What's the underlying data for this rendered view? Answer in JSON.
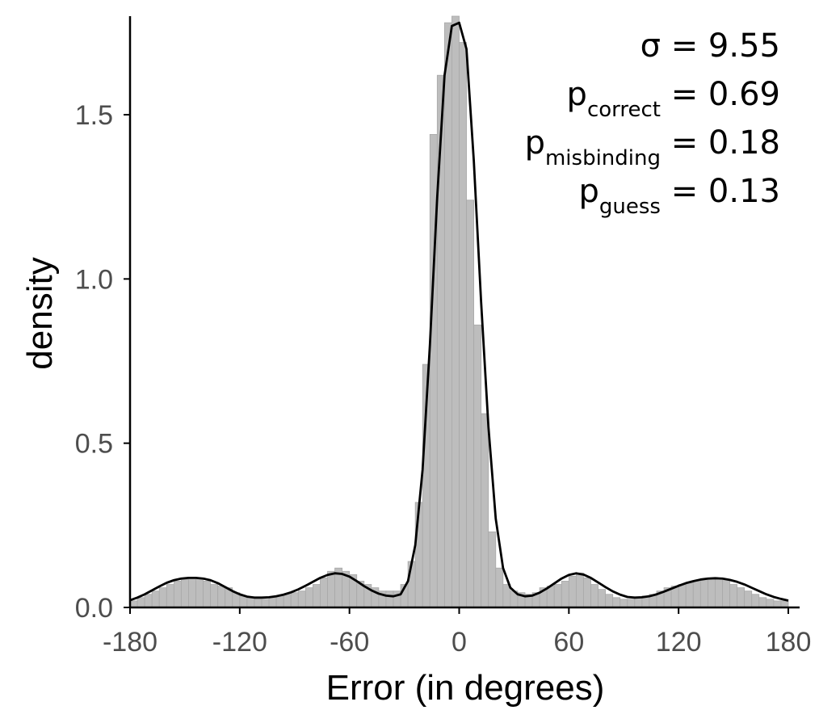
{
  "chart_data": {
    "type": "bar",
    "xlabel": "Error (in degrees)",
    "ylabel": "density",
    "xlim": [
      -180,
      180
    ],
    "ylim": [
      0,
      1.8
    ],
    "x_ticks": [
      "-180",
      "-120",
      "-60",
      "0",
      "60",
      "120",
      "180"
    ],
    "y_ticks": [
      "0.0",
      "0.5",
      "1.0",
      "1.5"
    ],
    "grid": false,
    "legend": "none",
    "colors": {
      "bars": "#bdbdbd",
      "bar_edge": "#a8a8a8",
      "curve": "#000000",
      "axis": "#000000",
      "tick_text": "#4d4d4d"
    },
    "bins": {
      "width": 4,
      "x_centers": [
        -178,
        -174,
        -170,
        -166,
        -162,
        -158,
        -154,
        -150,
        -146,
        -142,
        -138,
        -134,
        -130,
        -126,
        -122,
        -118,
        -114,
        -110,
        -106,
        -102,
        -98,
        -94,
        -90,
        -86,
        -82,
        -78,
        -74,
        -70,
        -66,
        -62,
        -58,
        -54,
        -50,
        -46,
        -42,
        -38,
        -34,
        -30,
        -26,
        -22,
        -18,
        -14,
        -10,
        -6,
        -2,
        2,
        6,
        10,
        14,
        18,
        22,
        26,
        30,
        34,
        38,
        42,
        46,
        50,
        54,
        58,
        62,
        66,
        70,
        74,
        78,
        82,
        86,
        90,
        94,
        98,
        102,
        106,
        110,
        114,
        118,
        122,
        126,
        130,
        134,
        138,
        142,
        146,
        150,
        154,
        158,
        162,
        166,
        170,
        174,
        178
      ],
      "values": [
        0.02,
        0.03,
        0.04,
        0.05,
        0.06,
        0.07,
        0.08,
        0.085,
        0.09,
        0.09,
        0.08,
        0.07,
        0.065,
        0.06,
        0.045,
        0.035,
        0.03,
        0.025,
        0.025,
        0.03,
        0.035,
        0.04,
        0.045,
        0.05,
        0.06,
        0.07,
        0.09,
        0.11,
        0.12,
        0.11,
        0.1,
        0.08,
        0.07,
        0.06,
        0.05,
        0.05,
        0.05,
        0.07,
        0.14,
        0.32,
        0.74,
        1.44,
        1.62,
        1.78,
        1.8,
        1.72,
        1.24,
        0.86,
        0.59,
        0.23,
        0.12,
        0.07,
        0.05,
        0.045,
        0.04,
        0.045,
        0.06,
        0.065,
        0.07,
        0.08,
        0.095,
        0.105,
        0.09,
        0.07,
        0.055,
        0.04,
        0.03,
        0.025,
        0.025,
        0.03,
        0.035,
        0.04,
        0.05,
        0.06,
        0.065,
        0.07,
        0.075,
        0.08,
        0.085,
        0.09,
        0.09,
        0.085,
        0.07,
        0.06,
        0.05,
        0.04,
        0.03,
        0.025,
        0.02,
        0.02
      ]
    },
    "model_curve": {
      "x": [
        -180,
        -176,
        -172,
        -168,
        -164,
        -160,
        -156,
        -152,
        -148,
        -144,
        -140,
        -136,
        -132,
        -128,
        -124,
        -120,
        -116,
        -112,
        -108,
        -104,
        -100,
        -96,
        -92,
        -88,
        -84,
        -80,
        -76,
        -72,
        -68,
        -64,
        -60,
        -56,
        -52,
        -48,
        -44,
        -40,
        -36,
        -32,
        -28,
        -24,
        -20,
        -16,
        -12,
        -8,
        -4,
        0,
        4,
        8,
        12,
        16,
        20,
        24,
        28,
        32,
        36,
        40,
        44,
        48,
        52,
        56,
        60,
        64,
        68,
        72,
        76,
        80,
        84,
        88,
        92,
        96,
        100,
        104,
        108,
        112,
        116,
        120,
        124,
        128,
        132,
        136,
        140,
        144,
        148,
        152,
        156,
        160,
        164,
        168,
        172,
        176,
        180
      ],
      "y": [
        0.022,
        0.03,
        0.04,
        0.052,
        0.064,
        0.075,
        0.083,
        0.088,
        0.09,
        0.09,
        0.088,
        0.083,
        0.074,
        0.062,
        0.05,
        0.04,
        0.033,
        0.03,
        0.03,
        0.031,
        0.034,
        0.039,
        0.046,
        0.055,
        0.066,
        0.078,
        0.09,
        0.099,
        0.104,
        0.102,
        0.094,
        0.08,
        0.065,
        0.052,
        0.042,
        0.036,
        0.034,
        0.04,
        0.08,
        0.19,
        0.42,
        0.8,
        1.25,
        1.62,
        1.77,
        1.78,
        1.7,
        1.36,
        0.93,
        0.55,
        0.27,
        0.12,
        0.06,
        0.04,
        0.034,
        0.036,
        0.045,
        0.058,
        0.073,
        0.088,
        0.099,
        0.104,
        0.1,
        0.09,
        0.076,
        0.062,
        0.049,
        0.039,
        0.032,
        0.03,
        0.031,
        0.034,
        0.04,
        0.048,
        0.057,
        0.066,
        0.074,
        0.08,
        0.085,
        0.088,
        0.089,
        0.088,
        0.084,
        0.078,
        0.07,
        0.06,
        0.05,
        0.04,
        0.032,
        0.026,
        0.021
      ]
    },
    "annotations": [
      {
        "main": "σ",
        "sub": "",
        "value": " = 9.55"
      },
      {
        "main": "p",
        "sub": "correct",
        "value": " = 0.69"
      },
      {
        "main": "p",
        "sub": "misbinding",
        "value": " = 0.18"
      },
      {
        "main": "p",
        "sub": "guess",
        "value": " = 0.13"
      }
    ]
  }
}
